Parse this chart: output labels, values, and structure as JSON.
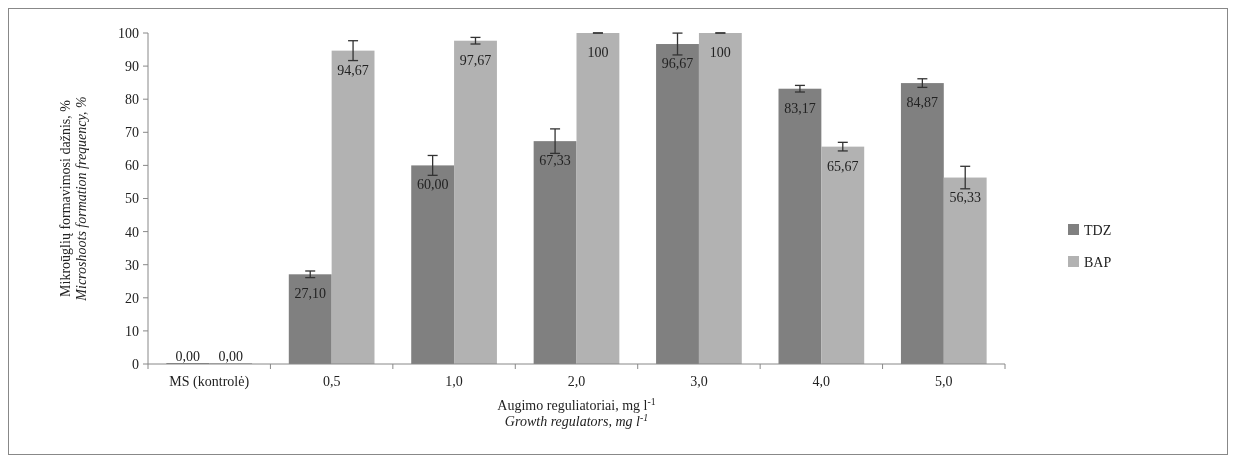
{
  "chart_data": {
    "type": "bar",
    "categories": [
      "MS (kontrolė)",
      "0,5",
      "1,0",
      "2,0",
      "3,0",
      "4,0",
      "5,0"
    ],
    "series": [
      {
        "name": "TDZ",
        "color": "#808080",
        "values": [
          0,
          27.1,
          60,
          67.33,
          96.67,
          83.17,
          84.87
        ],
        "errors": [
          null,
          1,
          3,
          3.7,
          3.3,
          1,
          1.3
        ],
        "value_labels": [
          "0,00",
          "27,10",
          "60,00",
          "67,33",
          "96,67",
          "83,17",
          "84,87"
        ]
      },
      {
        "name": "BAP",
        "color": "#b2b2b2",
        "values": [
          0,
          94.67,
          97.67,
          100,
          100,
          65.67,
          56.33
        ],
        "errors": [
          null,
          3,
          1,
          0,
          0,
          1.3,
          3.4
        ],
        "value_labels": [
          "0,00",
          "94,67",
          "97,67",
          "100",
          "100",
          "65,67",
          "56,33"
        ]
      }
    ],
    "ylim": [
      0,
      100
    ],
    "yticks": [
      0,
      10,
      20,
      30,
      40,
      50,
      60,
      70,
      80,
      90,
      100
    ],
    "ylabel": "Mikroūglių formavimosi dažnis, %\nMicroshoots formation frequency, %",
    "xlabel": "Augimo reguliatoriai, mg l$^{-1}$\nGrowth regulators, mg l$^{-1}$",
    "legend": "right",
    "grid": false
  }
}
